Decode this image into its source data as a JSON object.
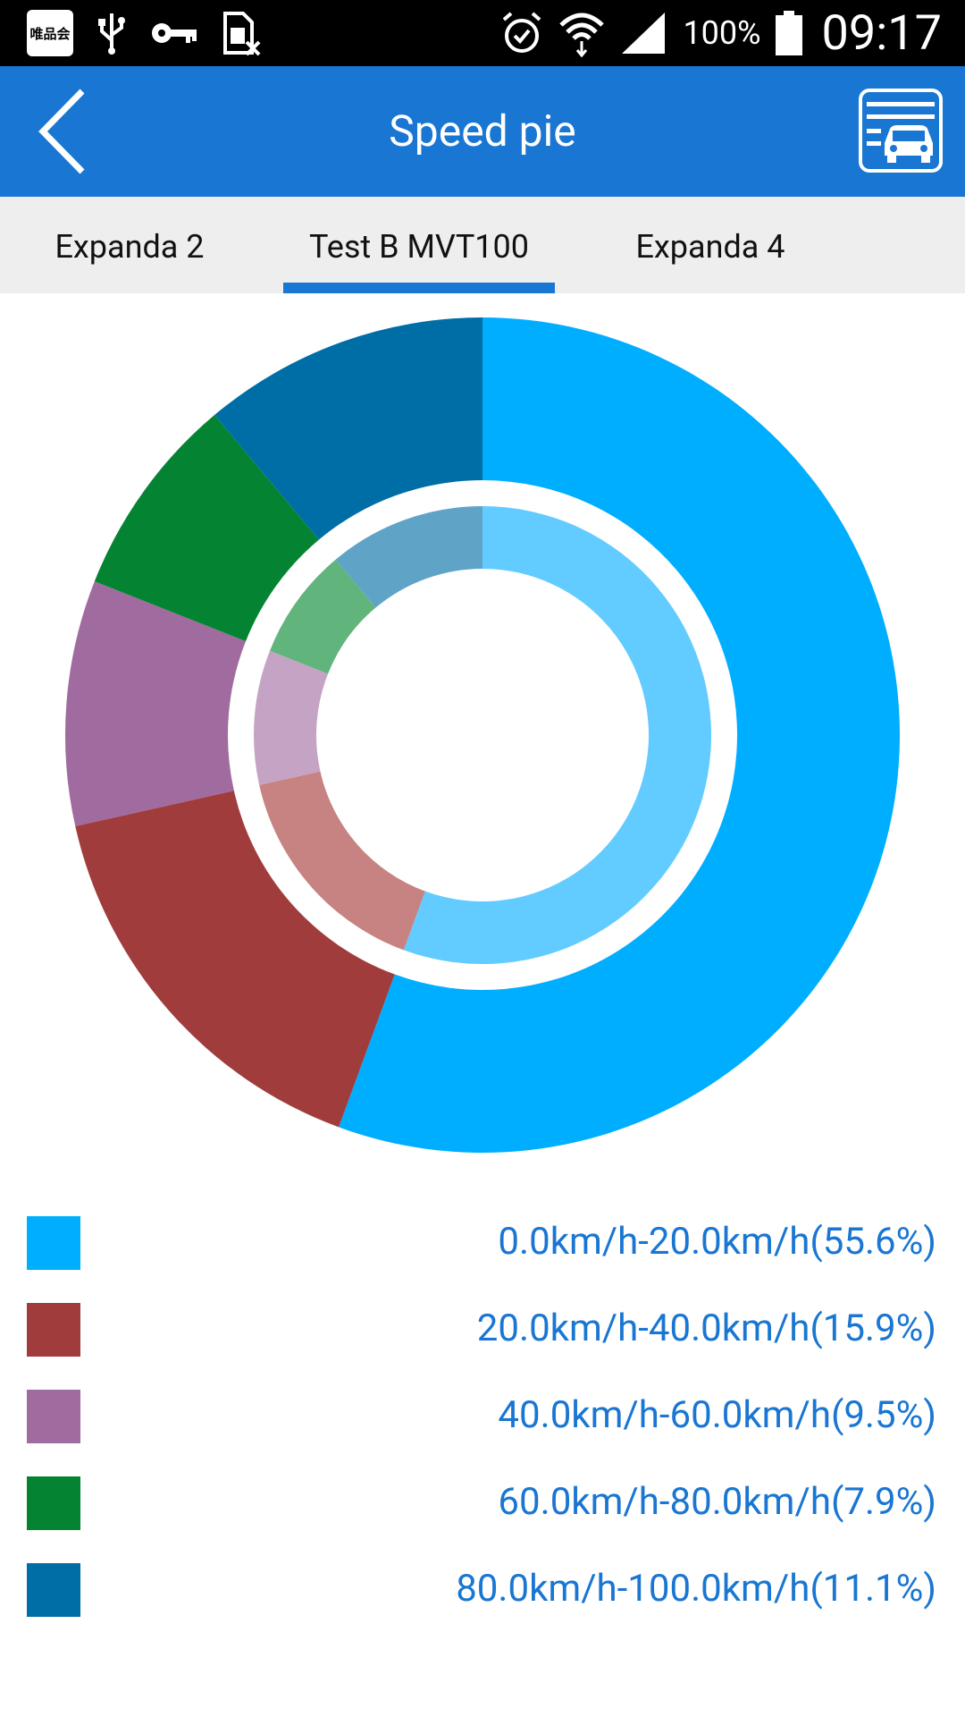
{
  "status_bar": {
    "app_badge": "唯品会",
    "battery_percent": "100%",
    "time": "09:17"
  },
  "header": {
    "title": "Speed pie",
    "back_icon": "chevron-left-icon",
    "action_icon": "vehicle-list-icon"
  },
  "tabs": [
    {
      "label": "Expanda 2",
      "active": false
    },
    {
      "label": "Test B MVT100",
      "active": true
    },
    {
      "label": "Expanda 4",
      "active": false
    }
  ],
  "colors": {
    "accent": "#1976D2",
    "slices": [
      "#00AEFF",
      "#A13C3C",
      "#A06B9E",
      "#048432",
      "#006EA6"
    ],
    "inner": [
      "#62CBFF",
      "#C78282",
      "#C5A3C4",
      "#62B47D",
      "#5FA4C7"
    ]
  },
  "chart_data": {
    "type": "pie",
    "style": "donut",
    "legend_position": "bottom",
    "categories": [
      "0.0km/h-20.0km/h",
      "20.0km/h-40.0km/h",
      "40.0km/h-60.0km/h",
      "60.0km/h-80.0km/h",
      "80.0km/h-100.0km/h"
    ],
    "values": [
      55.6,
      15.9,
      9.5,
      7.9,
      11.1
    ],
    "legend_labels": [
      "0.0km/h-20.0km/h(55.6%)",
      "20.0km/h-40.0km/h(15.9%)",
      "40.0km/h-60.0km/h(9.5%)",
      "60.0km/h-80.0km/h(7.9%)",
      "80.0km/h-100.0km/h(11.1%)"
    ]
  }
}
